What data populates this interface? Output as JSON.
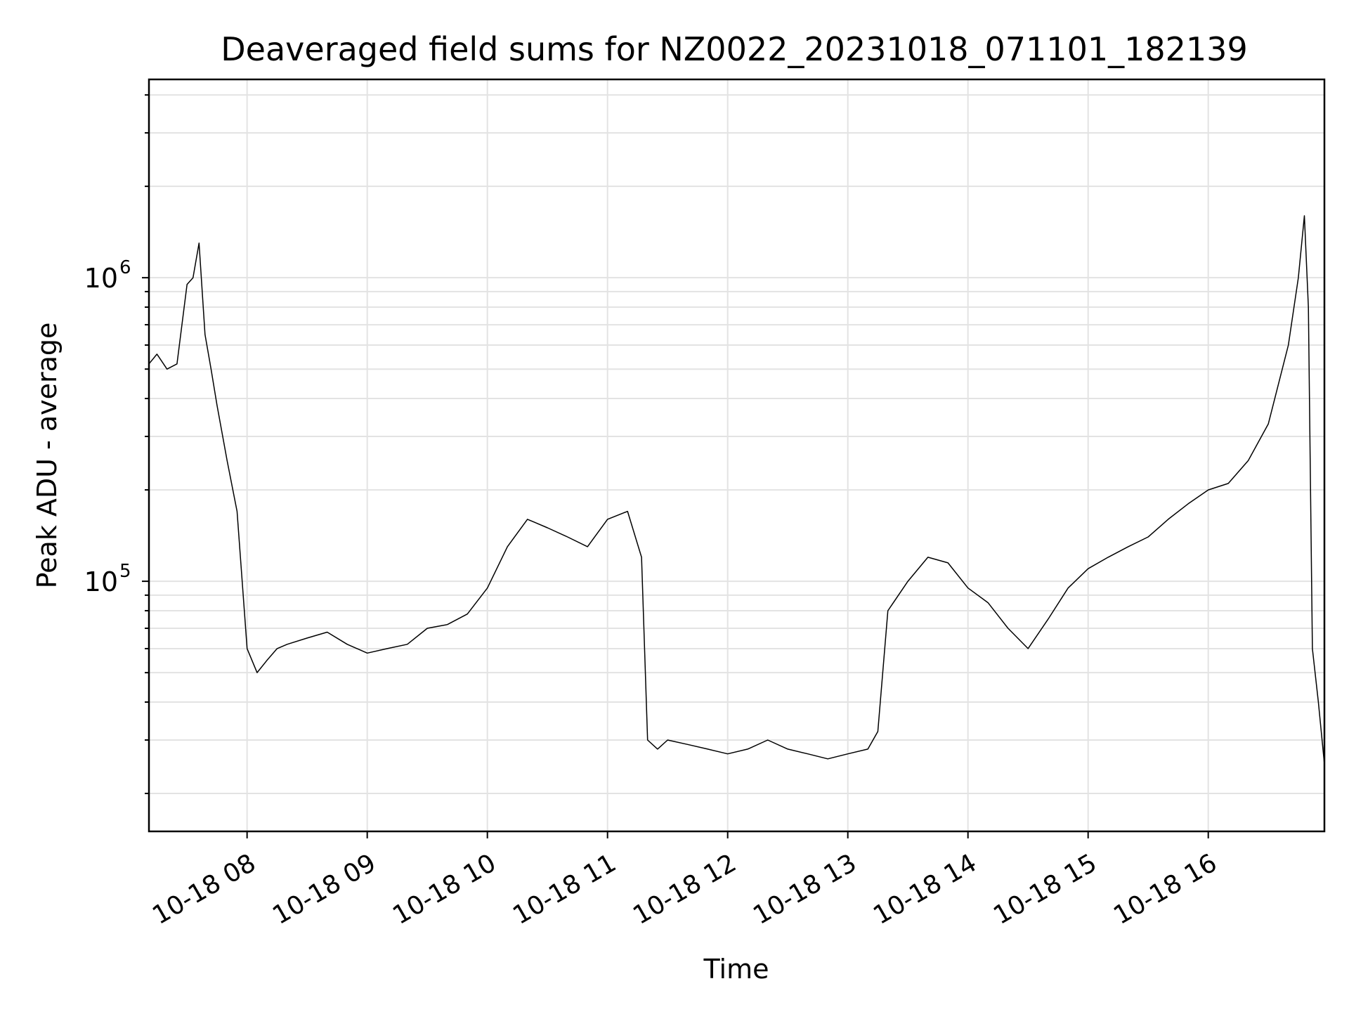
{
  "chart_data": {
    "type": "line",
    "title": "Deaveraged field sums for NZ0022_20231018_071101_182139",
    "xlabel": "Time",
    "ylabel": "Peak ADU - average",
    "yscale": "log",
    "grid": true,
    "xlim": [
      "2023-10-18 07:11",
      "2023-10-18 16:58"
    ],
    "ylim": [
      15000,
      4500000
    ],
    "xtick_labels": [
      "10-18 08",
      "10-18 09",
      "10-18 10",
      "10-18 11",
      "10-18 12",
      "10-18 13",
      "10-18 14",
      "10-18 15",
      "10-18 16"
    ],
    "ytick_labels": [
      {
        "base": "10",
        "exp": "5"
      },
      {
        "base": "10",
        "exp": "6"
      }
    ],
    "line_color": "#000000",
    "series": [
      {
        "x": [
          "07:11",
          "07:15",
          "07:20",
          "07:25",
          "07:30",
          "07:33",
          "07:36",
          "07:39",
          "07:42",
          "07:45",
          "07:50",
          "07:55",
          "08:00",
          "08:05",
          "08:10",
          "08:15",
          "08:20",
          "08:30",
          "08:40",
          "08:50",
          "09:00",
          "09:10",
          "09:20",
          "09:30",
          "09:40",
          "09:50",
          "10:00",
          "10:10",
          "10:20",
          "10:30",
          "10:40",
          "10:50",
          "11:00",
          "11:10",
          "11:17",
          "11:20",
          "11:25",
          "11:30",
          "11:40",
          "11:50",
          "12:00",
          "12:10",
          "12:20",
          "12:30",
          "12:40",
          "12:50",
          "13:00",
          "13:10",
          "13:15",
          "13:20",
          "13:30",
          "13:40",
          "13:50",
          "14:00",
          "14:10",
          "14:20",
          "14:30",
          "14:40",
          "14:50",
          "15:00",
          "15:10",
          "15:20",
          "15:30",
          "15:40",
          "15:50",
          "16:00",
          "16:10",
          "16:20",
          "16:30",
          "16:40",
          "16:45",
          "16:48",
          "16:50",
          "16:52",
          "16:55",
          "16:58"
        ],
        "y": [
          520000,
          560000,
          500000,
          520000,
          950000,
          1000000,
          1300000,
          650000,
          500000,
          380000,
          250000,
          170000,
          60000,
          50000,
          55000,
          60000,
          62000,
          65000,
          68000,
          62000,
          58000,
          60000,
          62000,
          70000,
          72000,
          78000,
          95000,
          130000,
          160000,
          150000,
          140000,
          130000,
          160000,
          170000,
          120000,
          30000,
          28000,
          30000,
          29000,
          28000,
          27000,
          28000,
          30000,
          28000,
          27000,
          26000,
          27000,
          28000,
          32000,
          80000,
          100000,
          120000,
          115000,
          95000,
          85000,
          70000,
          60000,
          75000,
          95000,
          110000,
          120000,
          130000,
          140000,
          160000,
          180000,
          200000,
          210000,
          250000,
          330000,
          600000,
          1000000,
          1600000,
          800000,
          60000,
          40000,
          25000
        ]
      }
    ]
  }
}
